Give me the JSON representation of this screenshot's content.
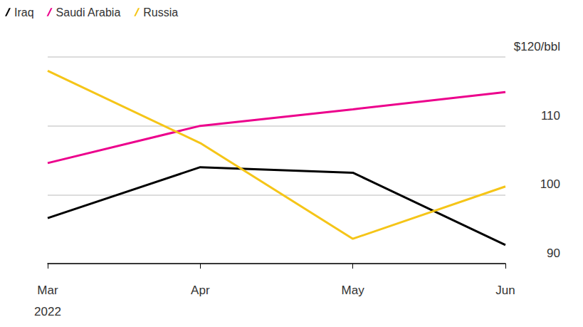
{
  "chart_data": {
    "type": "line",
    "categories": [
      "Mar\n2022",
      "Apr",
      "May",
      "Jun"
    ],
    "series": [
      {
        "name": "Iraq",
        "color": "#000000",
        "values": [
          96.6,
          104.0,
          103.2,
          92.7
        ]
      },
      {
        "name": "Saudi Arabia",
        "color": "#ec008c",
        "values": [
          104.6,
          110.0,
          112.4,
          114.9
        ]
      },
      {
        "name": "Russia",
        "color": "#f5c518",
        "values": [
          118.0,
          107.5,
          93.6,
          101.2
        ]
      }
    ],
    "ylim": [
      90,
      120
    ],
    "yticks": [
      90,
      100,
      110,
      {
        "value": 120,
        "label": "$120/bbl"
      }
    ],
    "grid": true,
    "legend": "top-left"
  }
}
